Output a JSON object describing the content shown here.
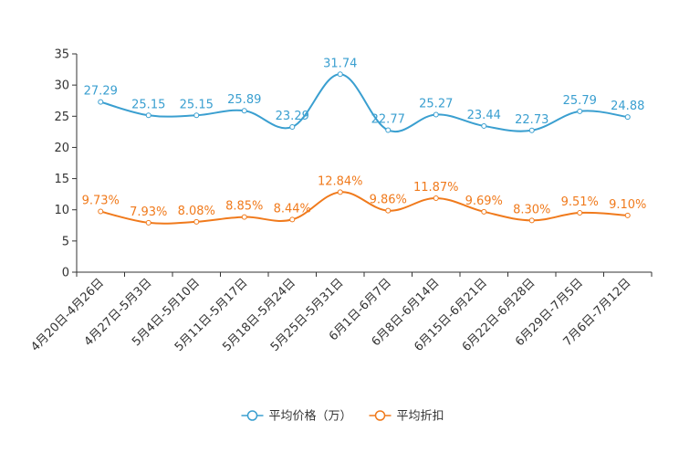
{
  "chart_data": {
    "type": "line",
    "title": "",
    "xlabel": "",
    "ylabel": "",
    "ylim": [
      0,
      35
    ],
    "yticks": [
      0,
      5,
      10,
      15,
      20,
      25,
      30,
      35
    ],
    "categories": [
      "4月20日-4月26日",
      "4月27日-5月3日",
      "5月4日-5月10日",
      "5月11日-5月17日",
      "5月18日-5月24日",
      "5月25日-5月31日",
      "6月1日-6月7日",
      "6月8日-6月14日",
      "6月15日-6月21日",
      "6月22日-6月28日",
      "6月29日-7月5日",
      "7月6日-7月12日"
    ],
    "series": [
      {
        "name": "平均价格（万）",
        "color": "#3a9fd0",
        "values": [
          27.29,
          25.15,
          25.15,
          25.89,
          23.29,
          31.74,
          22.77,
          25.27,
          23.44,
          22.73,
          25.79,
          24.88
        ],
        "labels": [
          "27.29",
          "25.15",
          "25.15",
          "25.89",
          "23.29",
          "31.74",
          "22.77",
          "25.27",
          "23.44",
          "22.73",
          "25.79",
          "24.88"
        ]
      },
      {
        "name": "平均折扣",
        "color": "#f07a1c",
        "values": [
          9.73,
          7.93,
          8.08,
          8.85,
          8.44,
          12.84,
          9.86,
          11.87,
          9.69,
          8.3,
          9.51,
          9.1
        ],
        "labels": [
          "9.73%",
          "7.93%",
          "8.08%",
          "8.85%",
          "8.44%",
          "12.84%",
          "9.86%",
          "11.87%",
          "9.69%",
          "8.30%",
          "9.51%",
          "9.10%"
        ]
      }
    ],
    "legend_position": "bottom-center",
    "grid": false
  }
}
